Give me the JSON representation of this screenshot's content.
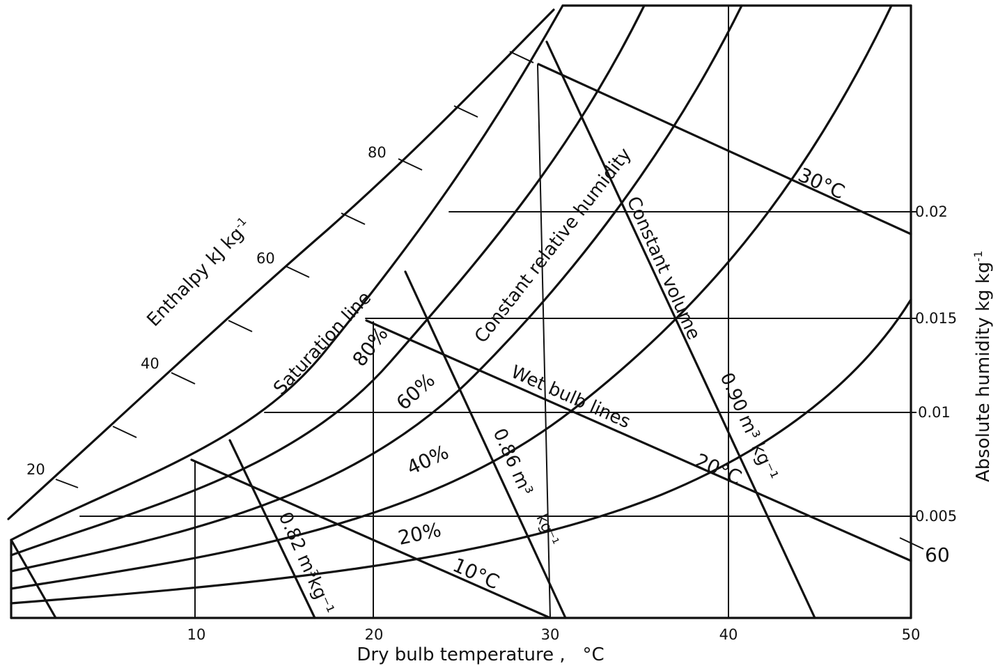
{
  "axes": {
    "x_title": "Dry bulb temperature ,   °C",
    "y_title": "Absolute humidity kg kg",
    "y_title_exp": "-1",
    "x_ticks": [
      "10",
      "20",
      "30",
      "40",
      "50"
    ],
    "y_ticks": [
      "0.005",
      "0.01",
      "0.015",
      "0.02"
    ]
  },
  "enthalpy": {
    "title": "Enthalpy kJ kg",
    "title_exp": "-1",
    "ticks": [
      "20",
      "40",
      "60",
      "80"
    ],
    "right_tick": "60"
  },
  "labels": {
    "saturation": "Saturation line",
    "rel_humidity": "Constant relative humidity",
    "volume": "Constant volume",
    "wet_bulb": "Wet bulb lines",
    "rh80": "80%",
    "rh60": "60%",
    "rh40": "40%",
    "rh20": "20%",
    "wb30": "30°C",
    "wb20": "20°C",
    "wb10": "10°C",
    "v090": "0.90 m³ kg⁻¹",
    "v086": "0.86 m³",
    "v086b": "kg⁻¹",
    "v082": "0.82 m³kg⁻¹"
  }
}
